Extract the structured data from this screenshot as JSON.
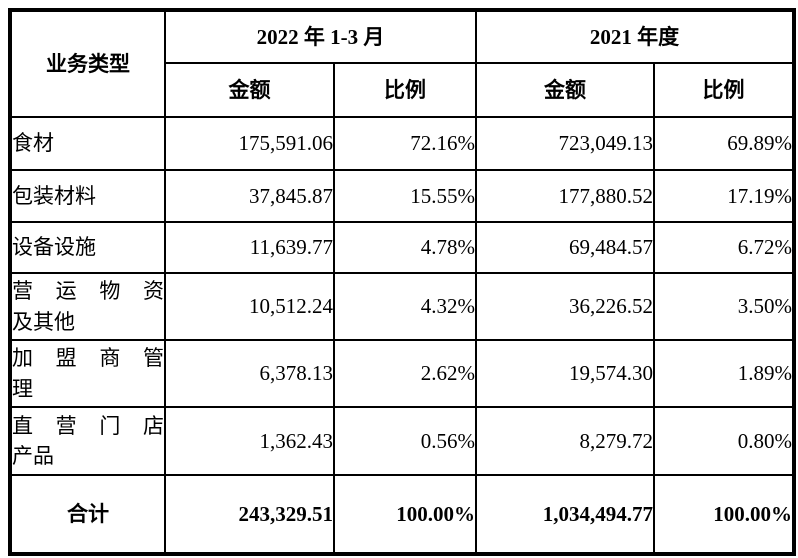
{
  "colors": {
    "background": "#ffffff",
    "border": "#000000",
    "text": "#000000"
  },
  "table": {
    "header": {
      "business_type": "业务类型",
      "period_2022": "2022 年 1-3 月",
      "period_2021": "2021 年度",
      "amount_2022": "金额",
      "ratio_2022": "比例",
      "amount_2021": "金额",
      "ratio_2021": "比例"
    },
    "rows": [
      {
        "label": "食材",
        "amount_2022": "175,591.06",
        "ratio_2022": "72.16%",
        "amount_2021": "723,049.13",
        "ratio_2021": "69.89%"
      },
      {
        "label": "包装材料",
        "amount_2022": "37,845.87",
        "ratio_2022": "15.55%",
        "amount_2021": "177,880.52",
        "ratio_2021": "17.19%"
      },
      {
        "label": "设备设施",
        "amount_2022": "11,639.77",
        "ratio_2022": "4.78%",
        "amount_2021": "69,484.57",
        "ratio_2021": "6.72%"
      },
      {
        "label": "营运物资及其他",
        "label_line1": "营运物资",
        "label_line2": "及其他",
        "amount_2022": "10,512.24",
        "ratio_2022": "4.32%",
        "amount_2021": "36,226.52",
        "ratio_2021": "3.50%"
      },
      {
        "label": "加盟商管理",
        "label_line1": "加盟商管",
        "label_line2": "理",
        "amount_2022": "6,378.13",
        "ratio_2022": "2.62%",
        "amount_2021": "19,574.30",
        "ratio_2021": "1.89%"
      },
      {
        "label": "直营门店产品",
        "label_line1": "直营门店",
        "label_line2": "产品",
        "amount_2022": "1,362.43",
        "ratio_2022": "0.56%",
        "amount_2021": "8,279.72",
        "ratio_2021": "0.80%"
      }
    ],
    "total": {
      "label": "合计",
      "amount_2022": "243,329.51",
      "ratio_2022": "100.00%",
      "amount_2021": "1,034,494.77",
      "ratio_2021": "100.00%"
    }
  }
}
